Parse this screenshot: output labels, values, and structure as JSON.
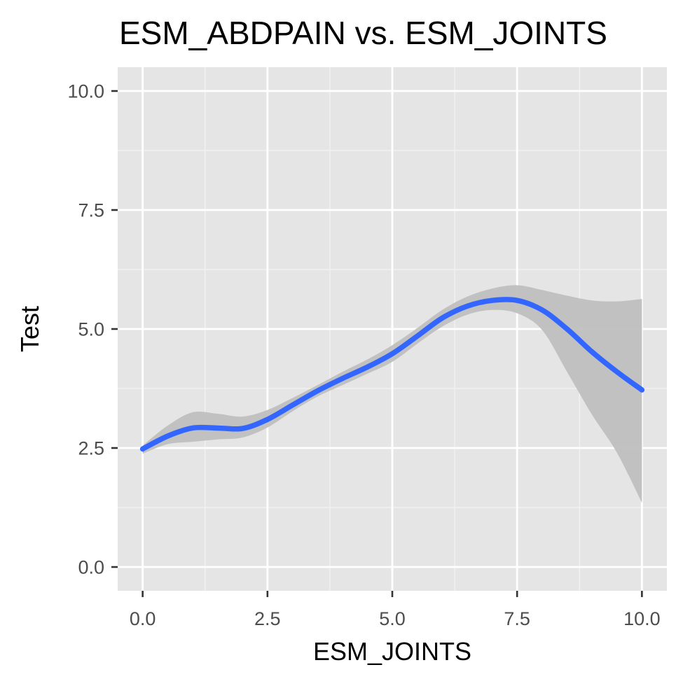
{
  "chart_data": {
    "type": "line",
    "title": "ESM_ABDPAIN vs. ESM_JOINTS",
    "xlabel": "ESM_JOINTS",
    "ylabel": "Test",
    "xlim": [
      -0.5,
      10.5
    ],
    "ylim": [
      -0.5,
      10.5
    ],
    "x_ticks": [
      0.0,
      2.5,
      5.0,
      7.5,
      10.0
    ],
    "y_ticks": [
      0.0,
      2.5,
      5.0,
      7.5,
      10.0
    ],
    "x_tick_labels": [
      "0.0",
      "2.5",
      "5.0",
      "7.5",
      "10.0"
    ],
    "y_tick_labels": [
      "0.0",
      "2.5",
      "5.0",
      "7.5",
      "10.0"
    ],
    "grid": true,
    "legend": "none",
    "series": [
      {
        "kind": "smooth",
        "color": "#3366FF",
        "band_color": "#bfbfbf",
        "x": [
          0.0,
          0.5,
          1.0,
          1.5,
          2.0,
          2.5,
          3.0,
          3.5,
          4.0,
          4.5,
          5.0,
          5.5,
          6.0,
          6.5,
          7.0,
          7.5,
          8.0,
          8.5,
          9.0,
          9.5,
          10.0
        ],
        "y": [
          2.48,
          2.75,
          2.92,
          2.92,
          2.91,
          3.1,
          3.4,
          3.7,
          3.96,
          4.2,
          4.48,
          4.85,
          5.23,
          5.48,
          5.6,
          5.6,
          5.4,
          5.0,
          4.52,
          4.1,
          3.72
        ],
        "lower": [
          2.38,
          2.58,
          2.63,
          2.68,
          2.72,
          2.93,
          3.27,
          3.58,
          3.82,
          4.06,
          4.31,
          4.69,
          5.05,
          5.3,
          5.4,
          5.33,
          4.98,
          4.1,
          3.2,
          2.4,
          1.35
        ],
        "upper": [
          2.55,
          2.97,
          3.25,
          3.22,
          3.16,
          3.3,
          3.55,
          3.82,
          4.1,
          4.36,
          4.66,
          5.02,
          5.4,
          5.68,
          5.85,
          5.92,
          5.82,
          5.7,
          5.6,
          5.58,
          5.63
        ]
      }
    ]
  }
}
